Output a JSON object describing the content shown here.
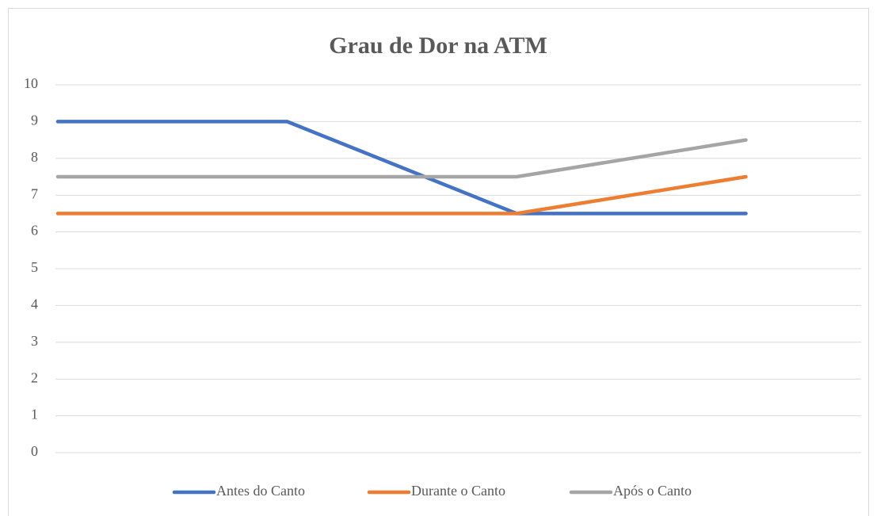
{
  "chart_data": {
    "type": "line",
    "title": "Grau de Dor na ATM",
    "categories": [
      null,
      null,
      null,
      null
    ],
    "series": [
      {
        "name": "Antes do Canto",
        "color": "#4472c4",
        "values": [
          9,
          9,
          6.5,
          6.5
        ]
      },
      {
        "name": "Durante o Canto",
        "color": "#ed7d31",
        "values": [
          6.5,
          6.5,
          6.5,
          7.5
        ]
      },
      {
        "name": "Após o Canto",
        "color": "#a5a5a5",
        "values": [
          7.5,
          7.5,
          7.5,
          8.5
        ]
      }
    ],
    "ylim": [
      0,
      10
    ],
    "yticks": [
      0,
      1,
      2,
      3,
      4,
      5,
      6,
      7,
      8,
      9,
      10
    ],
    "grid": true,
    "legend": "bottom"
  }
}
